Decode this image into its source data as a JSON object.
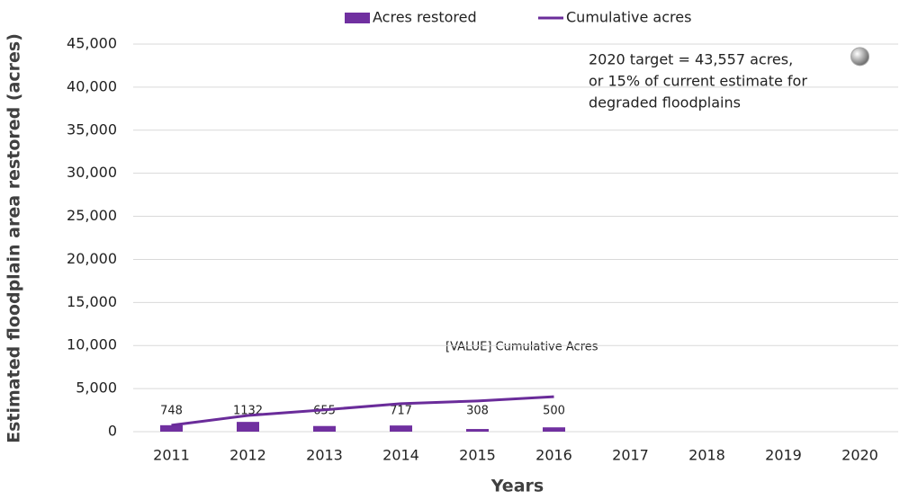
{
  "chart_data": {
    "type": "bar",
    "categories": [
      "2011",
      "2012",
      "2013",
      "2014",
      "2015",
      "2016",
      "2017",
      "2018",
      "2019",
      "2020"
    ],
    "series": [
      {
        "name": "Acres restored",
        "type": "bar",
        "color": "#7030a0",
        "values": [
          748,
          1132,
          655,
          717,
          308,
          500,
          null,
          null,
          null,
          null
        ]
      },
      {
        "name": "Cumulative acres",
        "type": "line",
        "color": "#6a2c9a",
        "values": [
          748,
          1880,
          2535,
          3252,
          3560,
          4060,
          null,
          null,
          null,
          null
        ]
      }
    ],
    "target": {
      "category": "2020",
      "value": 43557,
      "color": "#a6a6a6"
    },
    "annotations": [
      "2020 target = 43,557 acres,",
      "or 15%  of current estimate for",
      "degraded floodplains",
      "[VALUE] Cumulative Acres"
    ],
    "ylabel": "Estimated floodplain area restored (acres)",
    "xlabel": "Years",
    "ylim": [
      0,
      45000
    ],
    "yticks": [
      0,
      {
        "value": 5000,
        "label": "5,000"
      },
      {
        "value": 10000,
        "label": "10,000"
      },
      {
        "value": 15000,
        "label": "15,000"
      },
      {
        "value": 20000,
        "label": "20,000"
      },
      {
        "value": 25000,
        "label": "25,000"
      },
      {
        "value": 30000,
        "label": "30,000"
      },
      {
        "value": 35000,
        "label": "35,000"
      },
      {
        "value": 40000,
        "label": "40,000"
      },
      {
        "value": 45000,
        "label": "45,000"
      }
    ],
    "grid": true,
    "legend": "top"
  }
}
